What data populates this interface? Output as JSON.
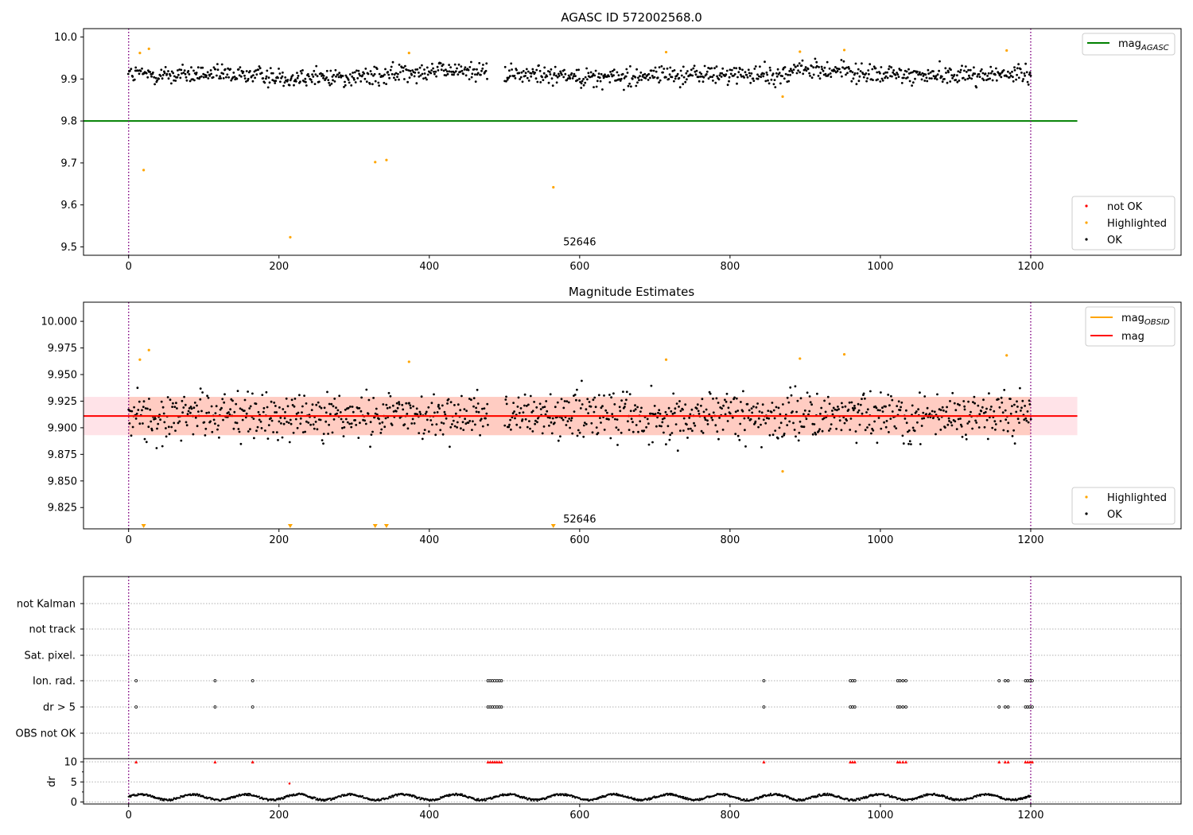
{
  "chart_data": [
    {
      "type": "scatter",
      "title": "AGASC ID 572002568.0",
      "xlim": [
        -60,
        1400
      ],
      "ylim": [
        9.48,
        10.02
      ],
      "xticks": [
        0,
        200,
        400,
        600,
        800,
        1000,
        1200
      ],
      "yticks": [
        9.5,
        9.6,
        9.7,
        9.8,
        9.9,
        10.0
      ],
      "ytick_labels": [
        "9.5",
        "9.6",
        "9.7",
        "9.8",
        "9.9",
        "10.0"
      ],
      "vlines": [
        0,
        1200
      ],
      "hline": {
        "label_base": "mag",
        "label_sub": "AGASC",
        "y": 9.8,
        "x_range": [
          -60,
          1262
        ],
        "color": "#008000"
      },
      "annotation": {
        "text": "52646",
        "x": 600,
        "y": 9.5
      },
      "legend_top": "top-right",
      "legend_bottom": "bottom-right",
      "legend": [
        {
          "label": "not OK",
          "color": "#ff0000"
        },
        {
          "label": "Highlighted",
          "color": "#ffa500"
        },
        {
          "label": "OK",
          "color": "#000000"
        }
      ],
      "ok_series": {
        "name": "OK",
        "color": "#000000",
        "x_range": [
          0,
          1200
        ],
        "n": 1100,
        "gaps": [
          [
            478,
            500
          ]
        ],
        "y_center": 9.91,
        "y_spread": 0.025,
        "bumps": [
          {
            "x": [
              360,
              480
            ],
            "dy": 0.01
          },
          {
            "x": [
              880,
              960
            ],
            "dy": 0.012
          },
          {
            "x": [
              180,
              340
            ],
            "dy": -0.005
          },
          {
            "x": [
              600,
              680
            ],
            "dy": -0.006
          }
        ]
      },
      "highlighted": {
        "name": "Highlighted",
        "color": "#ffa500",
        "x": [
          15,
          20,
          27,
          215,
          328,
          343,
          373,
          565,
          715,
          870,
          893,
          952,
          1168
        ],
        "y": [
          9.962,
          9.683,
          9.972,
          9.523,
          9.702,
          9.707,
          9.962,
          9.642,
          9.964,
          9.858,
          9.965,
          9.969,
          9.968
        ]
      }
    },
    {
      "type": "scatter",
      "title": "Magnitude Estimates",
      "xlim": [
        -60,
        1400
      ],
      "ylim": [
        9.805,
        10.018
      ],
      "xticks": [
        0,
        200,
        400,
        600,
        800,
        1000,
        1200
      ],
      "yticks": [
        9.825,
        9.85,
        9.875,
        9.9,
        9.925,
        9.95,
        9.975,
        10.0
      ],
      "ytick_labels": [
        "9.825",
        "9.850",
        "9.875",
        "9.900",
        "9.925",
        "9.950",
        "9.975",
        "10.000"
      ],
      "vlines": [
        0,
        1200
      ],
      "mag_line": {
        "label": "mag",
        "y": 9.911,
        "x_range": [
          -60,
          1262
        ],
        "color": "#ff0000"
      },
      "mag_obsid": {
        "label_base": "mag",
        "label_sub": "OBSID",
        "y": 9.911,
        "x_range": [
          0,
          1200
        ],
        "color": "#ffa500"
      },
      "outer_band": {
        "y": [
          9.893,
          9.929
        ],
        "x_range": [
          -60,
          1262
        ],
        "color": "#ffc0cb"
      },
      "inner_band": {
        "y": [
          9.893,
          9.929
        ],
        "x_range": [
          0,
          1200
        ],
        "color": "#ffa07a"
      },
      "annotation": {
        "text": "52646",
        "x": 600,
        "y": 9.807
      },
      "legend_top": "top-right",
      "legend_bottom": "bottom-right",
      "legend": [
        {
          "label": "Highlighted",
          "color": "#ffa500"
        },
        {
          "label": "OK",
          "color": "#000000"
        }
      ],
      "ok_series": {
        "name": "OK",
        "color": "#000000",
        "x_range": [
          0,
          1200
        ],
        "n": 1100,
        "gaps": [
          [
            478,
            500
          ]
        ],
        "y_center": 9.911,
        "y_spread": 0.025
      },
      "highlighted": {
        "name": "Highlighted",
        "color": "#ffa500",
        "x": [
          15,
          27,
          373,
          715,
          870,
          893,
          952,
          1168
        ],
        "y": [
          9.964,
          9.973,
          9.962,
          9.964,
          9.859,
          9.965,
          9.969,
          9.968
        ]
      },
      "below_range_markers": {
        "x": [
          20,
          215,
          328,
          343,
          565
        ],
        "color": "#ffa500"
      }
    },
    {
      "type": "scatter",
      "title": "",
      "xlim": [
        -60,
        1400
      ],
      "xticks": [
        0,
        200,
        400,
        600,
        800,
        1000,
        1200
      ],
      "vlines": [
        0,
        1200
      ],
      "flag_rows": [
        "not Kalman",
        "not track",
        "Sat. pixel.",
        "Ion. rad.",
        "dr > 5",
        "OBS not OK"
      ],
      "flag_events": {
        "rows": [
          "Ion. rad.",
          "dr > 5"
        ],
        "x": [
          10,
          115,
          165,
          478,
          481,
          484,
          487,
          490,
          493,
          496,
          845,
          960,
          963,
          966,
          1023,
          1026,
          1030,
          1034,
          1158,
          1166,
          1170,
          1193,
          1196,
          1199,
          1202
        ]
      },
      "dr": {
        "ylabel": "dr",
        "ylim": [
          -0.5,
          10.8
        ],
        "yticks": [
          0,
          5,
          10
        ],
        "ytick_labels": [
          "0",
          "5",
          "10"
        ],
        "ok_color": "#000000",
        "ok_x_range": [
          0,
          1200
        ],
        "ok_y_range": [
          0.2,
          2.4
        ],
        "capped": {
          "color": "#ff0000",
          "y": 10,
          "x": [
            10,
            115,
            165,
            478,
            481,
            484,
            487,
            490,
            493,
            496,
            845,
            960,
            963,
            966,
            1023,
            1026,
            1030,
            1034,
            1158,
            1166,
            1170,
            1193,
            1196,
            1199,
            1202
          ]
        },
        "extra_red": {
          "x": [
            214
          ],
          "y": [
            4.6
          ]
        }
      }
    }
  ]
}
